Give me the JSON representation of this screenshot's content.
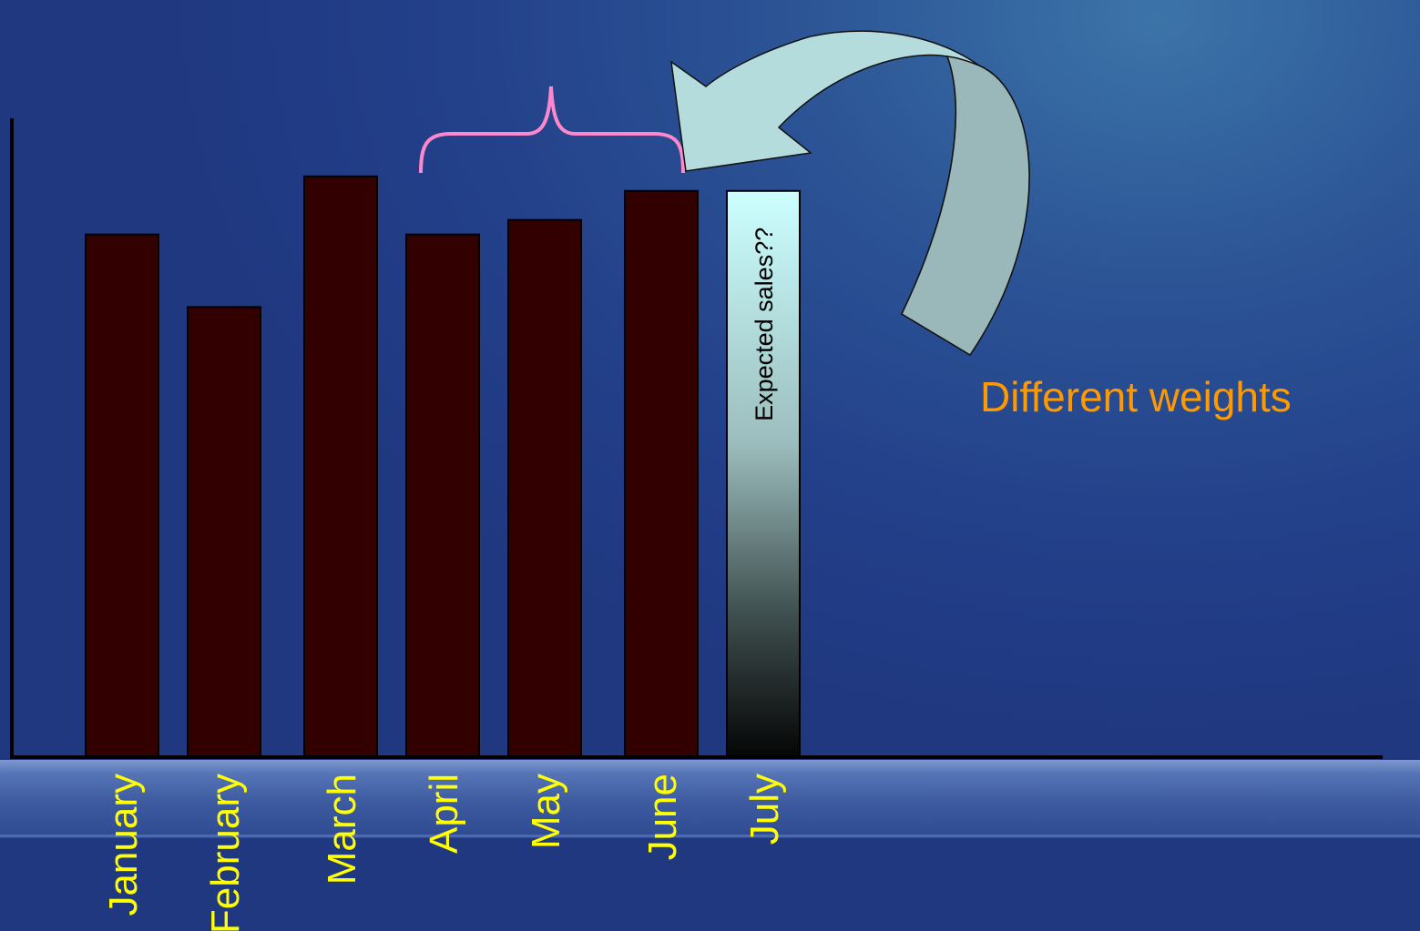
{
  "chart_data": {
    "type": "bar",
    "categories": [
      "January",
      "February",
      "March",
      "April",
      "May",
      "June",
      "July"
    ],
    "values": [
      90,
      77.5,
      100,
      90,
      92.5,
      97.5,
      97.5
    ],
    "projected": [
      false,
      false,
      false,
      false,
      false,
      false,
      true
    ],
    "bar_labels": [
      "",
      "",
      "",
      "",
      "",
      "",
      "Expected sales??"
    ],
    "ylim": [
      0,
      110
    ],
    "grid": false,
    "axis_labels_y": false,
    "annotation": "Different weights",
    "bracket_over": [
      "April",
      "June"
    ],
    "colors": {
      "bar_fill": "#330000",
      "projected_fill_top": "#ccffff",
      "projected_fill_bottom": "#050505",
      "tick_label": "#ffff00",
      "annotation": "#ff9900",
      "bracket": "#ff88cc",
      "arrow_fill": "#b5dcdc",
      "arrow_shade": "#9ab8ba"
    }
  }
}
